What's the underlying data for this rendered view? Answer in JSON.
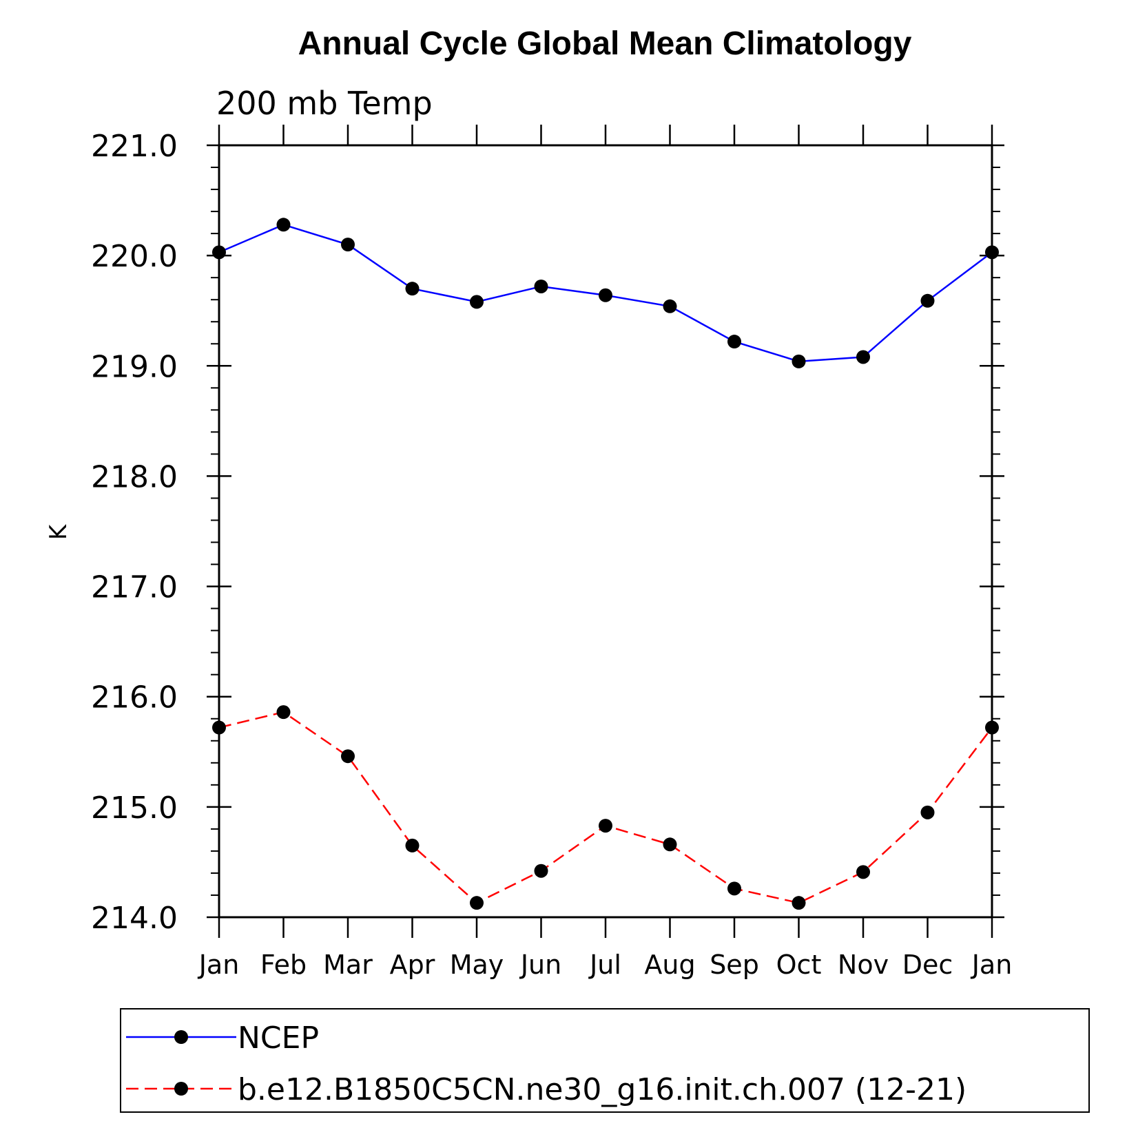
{
  "chart_data": {
    "type": "line",
    "title": "Annual Cycle Global Mean Climatology",
    "subtitle": "200 mb Temp",
    "xlabel": "",
    "ylabel": "K",
    "categories": [
      "Jan",
      "Feb",
      "Mar",
      "Apr",
      "May",
      "Jun",
      "Jul",
      "Aug",
      "Sep",
      "Oct",
      "Nov",
      "Dec",
      "Jan"
    ],
    "ylim": [
      214.0,
      221.0
    ],
    "yticks": [
      "214.0",
      "215.0",
      "216.0",
      "217.0",
      "218.0",
      "219.0",
      "220.0",
      "221.0"
    ],
    "ytick_values": [
      214,
      215,
      216,
      217,
      218,
      219,
      220,
      221
    ],
    "y_minor_step": 0.2,
    "grid": false,
    "legend_position": "bottom",
    "series": [
      {
        "name": "NCEP",
        "color": "#0000ff",
        "line_style": "solid",
        "marker": "filled-circle",
        "values": [
          220.03,
          220.28,
          220.1,
          219.7,
          219.58,
          219.72,
          219.64,
          219.54,
          219.22,
          219.04,
          219.08,
          219.59,
          220.03
        ]
      },
      {
        "name": "b.e12.B1850C5CN.ne30_g16.init.ch.007 (12-21)",
        "color": "#ff0000",
        "line_style": "dashed",
        "marker": "filled-circle",
        "values": [
          215.72,
          215.86,
          215.46,
          214.65,
          214.13,
          214.42,
          214.83,
          214.66,
          214.26,
          214.13,
          214.41,
          214.95,
          215.72
        ]
      }
    ]
  }
}
